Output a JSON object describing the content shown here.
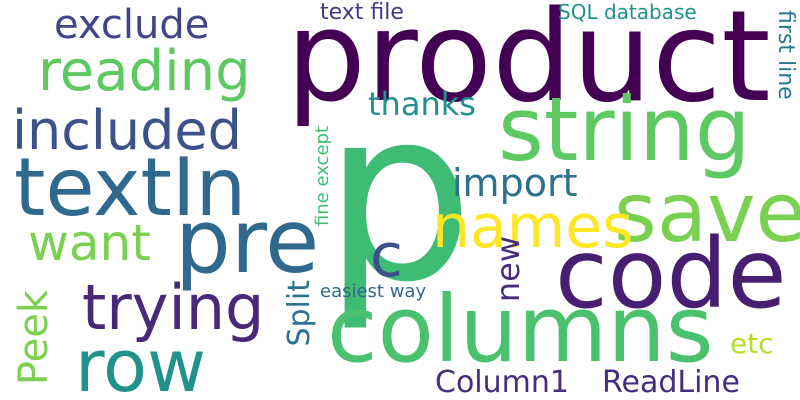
{
  "word_cloud": {
    "background": "#ffffff",
    "words": {
      "p": {
        "text": "p",
        "color": "#3fbc73"
      },
      "product": {
        "text": "product",
        "color": "#440154"
      },
      "string": {
        "text": "string",
        "color": "#5ec962"
      },
      "code": {
        "text": "code",
        "color": "#481f70"
      },
      "columns": {
        "text": "columns",
        "color": "#4ac16d"
      },
      "save": {
        "text": "save",
        "color": "#7ad151"
      },
      "names": {
        "text": "names",
        "color": "#fde725"
      },
      "textIn": {
        "text": "textIn",
        "color": "#31688e"
      },
      "pre": {
        "text": "pre",
        "color": "#31688e"
      },
      "row": {
        "text": "row",
        "color": "#21918c"
      },
      "trying": {
        "text": "trying",
        "color": "#482878"
      },
      "want": {
        "text": "want",
        "color": "#7ad151"
      },
      "included": {
        "text": "included",
        "color": "#3b528b"
      },
      "reading": {
        "text": "reading",
        "color": "#5ec962"
      },
      "exclude": {
        "text": "exclude",
        "color": "#414487"
      },
      "c": {
        "text": "c",
        "color": "#3b528b"
      },
      "import": {
        "text": "import",
        "color": "#2c728e"
      },
      "thanks": {
        "text": "thanks",
        "color": "#21918c"
      },
      "text_file": {
        "text": "text file",
        "color": "#443983"
      },
      "sql_db": {
        "text": "SQL database",
        "color": "#21918c"
      },
      "first_line": {
        "text": "first line",
        "color": "#2a788e"
      },
      "fine_except": {
        "text": "fine except",
        "color": "#3fbc73"
      },
      "new": {
        "text": "new",
        "color": "#472d7b"
      },
      "easiest": {
        "text": "easiest way",
        "color": "#31688e"
      },
      "split": {
        "text": "Split",
        "color": "#2c728e"
      },
      "peek": {
        "text": "Peek",
        "color": "#7ad151"
      },
      "etc": {
        "text": "etc",
        "color": "#b5de2b"
      },
      "column1": {
        "text": "Column1",
        "color": "#472d7b"
      },
      "readline": {
        "text": "ReadLine",
        "color": "#472d7b"
      }
    }
  }
}
